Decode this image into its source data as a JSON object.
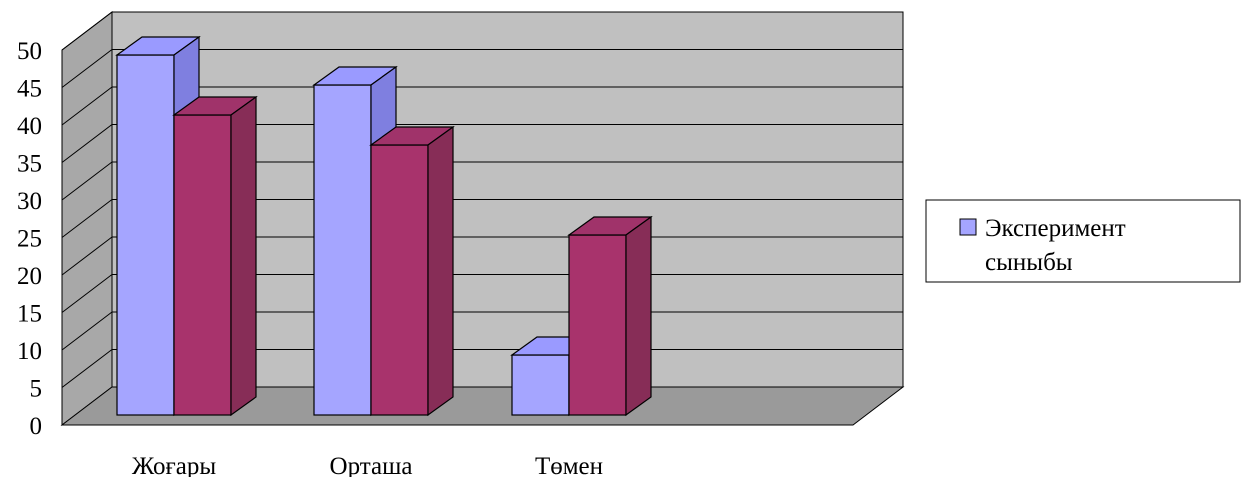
{
  "chart_data": {
    "type": "bar",
    "style": "3d-clustered-column",
    "categories": [
      "Жоғары",
      "Орташа",
      "Төмен"
    ],
    "series": [
      {
        "name": "Эксперимент сыныбы",
        "values": [
          48,
          44,
          8
        ],
        "color": "#a5a5ff",
        "side_color": "#7f7fe0",
        "top_color": "#9a9aff"
      },
      {
        "values": [
          40,
          36,
          24
        ],
        "color": "#a8336c",
        "side_color": "#872d57",
        "top_color": "#a0336a"
      }
    ],
    "ylim": [
      0,
      50
    ],
    "yticks": [
      "0",
      "5",
      "10",
      "15",
      "20",
      "25",
      "30",
      "35",
      "40",
      "45",
      "50"
    ],
    "grid": true,
    "legend": {
      "position": "right",
      "entries": [
        "Эксперимент",
        "сыныбы"
      ]
    },
    "colors": {
      "wall": "#c0c0c0",
      "side_wall": "#a8a8a8",
      "floor": "#9a9a9a",
      "grid": "#000000"
    }
  }
}
